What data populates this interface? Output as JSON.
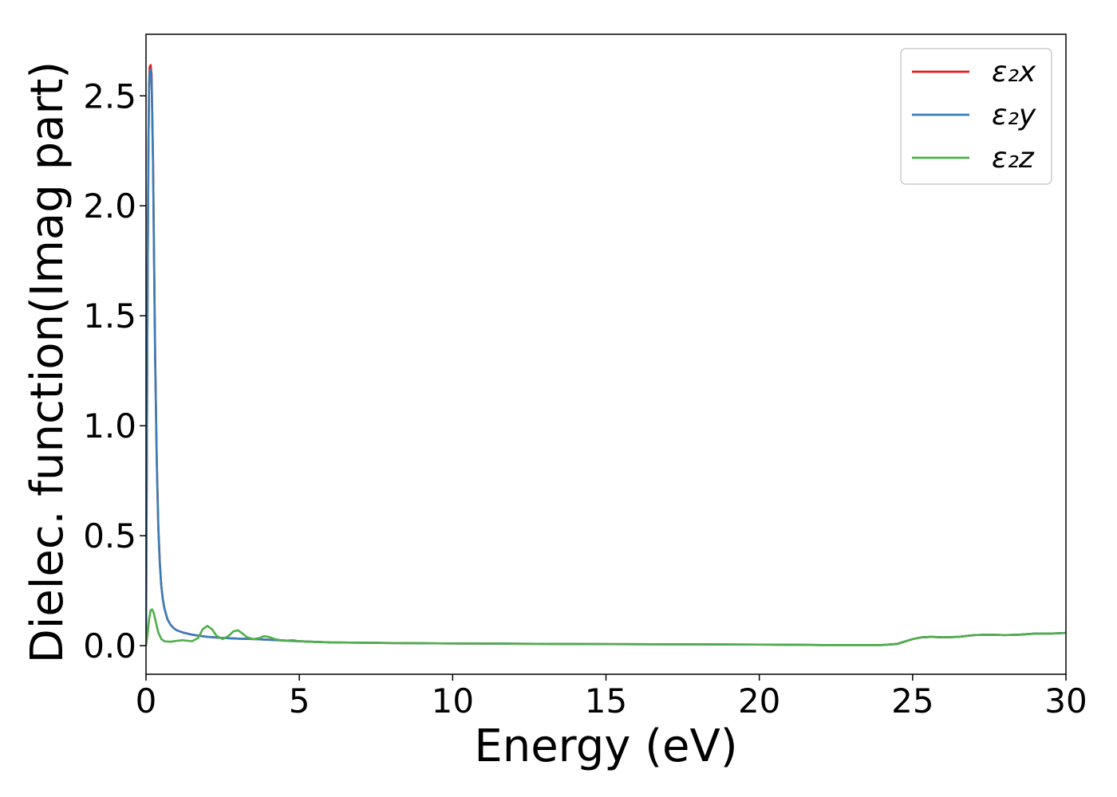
{
  "chart_data": {
    "type": "line",
    "title": "",
    "xlabel": "Energy (eV)",
    "ylabel": "Dielec. function(Imag part)",
    "xlim": [
      0,
      30
    ],
    "ylim": [
      -0.13,
      2.78
    ],
    "xticks": [
      0,
      5,
      10,
      15,
      20,
      25,
      30
    ],
    "xtick_labels": [
      "0",
      "5",
      "10",
      "15",
      "20",
      "25",
      "30"
    ],
    "yticks": [
      0.0,
      0.5,
      1.0,
      1.5,
      2.0,
      2.5
    ],
    "ytick_labels": [
      "0.0",
      "0.5",
      "1.0",
      "1.5",
      "2.0",
      "2.5"
    ],
    "grid": false,
    "legend_position": "top-right",
    "series": [
      {
        "name": "ε₂x",
        "color": "#e41a1c",
        "x": [
          0,
          0.02,
          0.05,
          0.08,
          0.1,
          0.12,
          0.15,
          0.18,
          0.2,
          0.23,
          0.26,
          0.3,
          0.35,
          0.4,
          0.45,
          0.5,
          0.55,
          0.6,
          0.7,
          0.8,
          0.9,
          1.0,
          1.2,
          1.5,
          2.0,
          2.5,
          3.0,
          3.5,
          4.0,
          5.0,
          6.0,
          8.0,
          10.0,
          12.0,
          15.0,
          18.0,
          20.0,
          22.0,
          24.0,
          24.5,
          25.0,
          25.3,
          25.6,
          26.0,
          26.5,
          27.0,
          27.5,
          28.0,
          28.5,
          29.0,
          29.5,
          30.0
        ],
        "y": [
          0.0,
          0.6,
          1.6,
          2.3,
          2.55,
          2.63,
          2.64,
          2.6,
          2.45,
          2.2,
          1.8,
          1.3,
          0.85,
          0.55,
          0.38,
          0.27,
          0.21,
          0.17,
          0.12,
          0.095,
          0.08,
          0.07,
          0.06,
          0.05,
          0.04,
          0.035,
          0.032,
          0.03,
          0.027,
          0.02,
          0.015,
          0.012,
          0.01,
          0.009,
          0.007,
          0.006,
          0.005,
          0.003,
          0.003,
          0.008,
          0.03,
          0.038,
          0.04,
          0.038,
          0.04,
          0.048,
          0.05,
          0.048,
          0.05,
          0.055,
          0.055,
          0.058
        ]
      },
      {
        "name": "ε₂y",
        "color": "#377eb8",
        "x": [
          0,
          0.02,
          0.05,
          0.08,
          0.1,
          0.12,
          0.15,
          0.18,
          0.2,
          0.23,
          0.26,
          0.3,
          0.35,
          0.4,
          0.45,
          0.5,
          0.55,
          0.6,
          0.7,
          0.8,
          0.9,
          1.0,
          1.2,
          1.5,
          2.0,
          2.5,
          3.0,
          3.5,
          4.0,
          5.0,
          6.0,
          8.0,
          10.0,
          12.0,
          15.0,
          18.0,
          20.0,
          22.0,
          24.0,
          24.5,
          25.0,
          25.3,
          25.6,
          26.0,
          26.5,
          27.0,
          27.5,
          28.0,
          28.5,
          29.0,
          29.5,
          30.0
        ],
        "y": [
          0.0,
          0.6,
          1.6,
          2.28,
          2.53,
          2.61,
          2.62,
          2.58,
          2.43,
          2.18,
          1.78,
          1.28,
          0.84,
          0.54,
          0.37,
          0.27,
          0.21,
          0.17,
          0.12,
          0.095,
          0.08,
          0.07,
          0.06,
          0.05,
          0.04,
          0.035,
          0.032,
          0.03,
          0.027,
          0.02,
          0.015,
          0.012,
          0.01,
          0.009,
          0.007,
          0.006,
          0.005,
          0.003,
          0.003,
          0.008,
          0.03,
          0.038,
          0.04,
          0.038,
          0.04,
          0.048,
          0.05,
          0.048,
          0.05,
          0.055,
          0.055,
          0.058
        ]
      },
      {
        "name": "ε₂z",
        "color": "#4daf4a",
        "x": [
          0,
          0.05,
          0.1,
          0.15,
          0.2,
          0.25,
          0.3,
          0.4,
          0.5,
          0.6,
          0.8,
          1.0,
          1.2,
          1.5,
          1.7,
          1.85,
          2.0,
          2.15,
          2.3,
          2.5,
          2.7,
          2.85,
          3.0,
          3.15,
          3.3,
          3.5,
          3.7,
          3.85,
          4.0,
          4.2,
          4.5,
          4.8,
          5.0,
          5.5,
          6.0,
          8.0,
          10.0,
          12.0,
          15.0,
          18.0,
          20.0,
          22.0,
          24.0,
          24.5,
          25.0,
          25.3,
          25.6,
          26.0,
          26.5,
          27.0,
          27.5,
          28.0,
          28.5,
          29.0,
          29.5,
          30.0
        ],
        "y": [
          0.0,
          0.05,
          0.12,
          0.16,
          0.165,
          0.15,
          0.12,
          0.06,
          0.03,
          0.02,
          0.018,
          0.022,
          0.025,
          0.02,
          0.035,
          0.075,
          0.09,
          0.075,
          0.045,
          0.03,
          0.045,
          0.065,
          0.07,
          0.055,
          0.038,
          0.03,
          0.035,
          0.043,
          0.04,
          0.03,
          0.022,
          0.025,
          0.02,
          0.017,
          0.015,
          0.012,
          0.01,
          0.009,
          0.007,
          0.006,
          0.005,
          0.003,
          0.003,
          0.008,
          0.03,
          0.038,
          0.04,
          0.038,
          0.04,
          0.048,
          0.05,
          0.048,
          0.05,
          0.055,
          0.055,
          0.058
        ]
      }
    ]
  }
}
